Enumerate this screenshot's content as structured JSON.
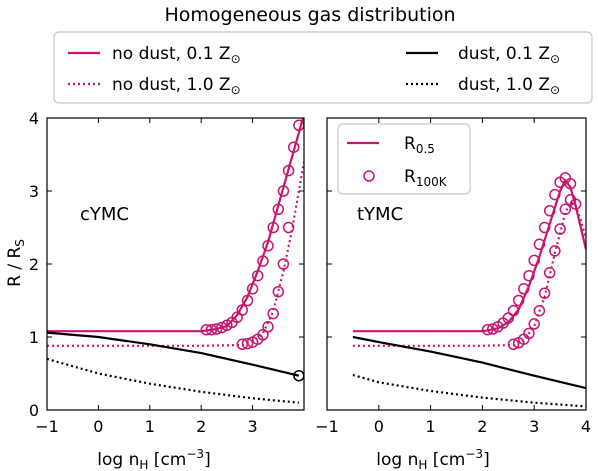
{
  "chart_data": {
    "type": "line",
    "title": "Homogeneous gas distribution",
    "colors": {
      "no_dust": "#c8156e",
      "dust": "#000000"
    },
    "legend_top": [
      {
        "id": "nd01",
        "text": "no dust, 0.1 Z",
        "sym": "⊙",
        "color": "#c8156e",
        "style": "solid"
      },
      {
        "id": "nd10",
        "text": "no dust, 1.0 Z",
        "sym": "⊙",
        "color": "#c8156e",
        "style": "dotted"
      },
      {
        "id": "d01",
        "text": "dust, 0.1 Z",
        "sym": "⊙",
        "color": "#000000",
        "style": "solid"
      },
      {
        "id": "d10",
        "text": "dust, 1.0 Z",
        "sym": "⊙",
        "color": "#000000",
        "style": "dotted"
      }
    ],
    "legend_inner": [
      {
        "main": "R",
        "sub": "0.5",
        "marker": "line"
      },
      {
        "main": "R",
        "sub": "100K",
        "marker": "circle"
      }
    ],
    "ylabel": {
      "main": "R / R",
      "sub": "S"
    },
    "xlabel": {
      "pre": "log n",
      "sub": "H",
      "post": " [cm",
      "sup": "−3",
      "end": "]"
    },
    "xlim": [
      -1,
      4
    ],
    "ylim": [
      0,
      4
    ],
    "panels": [
      {
        "name": "cYMC",
        "xticks": [
          "−1",
          "0",
          "1",
          "2",
          "3"
        ],
        "xtick_vals": [
          -1,
          0,
          1,
          2,
          3
        ],
        "yticks": [
          "0",
          "1",
          "2",
          "3",
          "4"
        ],
        "series": [
          {
            "name": "no dust, 0.1 Z",
            "color": "#c8156e",
            "style": "solid",
            "kind": "line",
            "x": [
              -1,
              0,
              1,
              2,
              2.1,
              2.3,
              2.5,
              2.7,
              2.9,
              3.1,
              3.3,
              3.5,
              3.7,
              3.9,
              4.0
            ],
            "y": [
              1.08,
              1.08,
              1.08,
              1.08,
              1.09,
              1.11,
              1.15,
              1.3,
              1.55,
              1.9,
              2.3,
              2.8,
              3.3,
              3.8,
              4.05
            ]
          },
          {
            "name": "no dust, 1.0 Z",
            "color": "#c8156e",
            "style": "dotted",
            "kind": "line",
            "x": [
              -1,
              0,
              1,
              2,
              2.8,
              3.0,
              3.2,
              3.4,
              3.6,
              3.75,
              3.9,
              4.0
            ],
            "y": [
              0.88,
              0.88,
              0.88,
              0.88,
              0.89,
              0.93,
              1.05,
              1.35,
              1.9,
              2.4,
              3.0,
              3.4
            ]
          },
          {
            "name": "dust, 0.1 Z",
            "color": "#000000",
            "style": "solid",
            "kind": "line",
            "x": [
              -1,
              0,
              1,
              2,
              3,
              3.9
            ],
            "y": [
              1.06,
              1.0,
              0.9,
              0.78,
              0.62,
              0.47
            ]
          },
          {
            "name": "dust, 1.0 Z",
            "color": "#000000",
            "style": "dotted",
            "kind": "line",
            "x": [
              -1,
              0,
              1,
              2,
              3,
              3.9
            ],
            "y": [
              0.7,
              0.5,
              0.36,
              0.25,
              0.16,
              0.1
            ]
          },
          {
            "name": "no dust, 0.1 Z R100K",
            "color": "#c8156e",
            "kind": "circles",
            "x": [
              2.1,
              2.2,
              2.3,
              2.4,
              2.5,
              2.6,
              2.7,
              2.8,
              2.9,
              3.0,
              3.1,
              3.2,
              3.3,
              3.4,
              3.5,
              3.6,
              3.7,
              3.8,
              3.9
            ],
            "y": [
              1.1,
              1.1,
              1.11,
              1.13,
              1.16,
              1.2,
              1.27,
              1.37,
              1.5,
              1.66,
              1.84,
              2.04,
              2.25,
              2.5,
              2.75,
              3.0,
              3.28,
              3.6,
              3.9
            ]
          },
          {
            "name": "no dust, 1.0 Z R100K",
            "color": "#c8156e",
            "kind": "circles",
            "x": [
              2.8,
              2.9,
              3.0,
              3.1,
              3.2,
              3.3,
              3.4,
              3.5,
              3.6,
              3.7
            ],
            "y": [
              0.9,
              0.91,
              0.93,
              0.97,
              1.03,
              1.14,
              1.32,
              1.62,
              2.0,
              2.5
            ]
          },
          {
            "name": "dust, 0.1 Z R100K",
            "color": "#000000",
            "kind": "circles",
            "x": [
              3.9
            ],
            "y": [
              0.47
            ]
          }
        ]
      },
      {
        "name": "tYMC",
        "xticks": [
          "−1",
          "0",
          "1",
          "2",
          "3",
          "4"
        ],
        "xtick_vals": [
          -1,
          0,
          1,
          2,
          3,
          4
        ],
        "yticks": [],
        "series": [
          {
            "name": "no dust, 0.1 Z",
            "color": "#c8156e",
            "style": "solid",
            "kind": "line",
            "x": [
              -0.5,
              0,
              1,
              2,
              2.1,
              2.3,
              2.5,
              2.7,
              2.9,
              3.1,
              3.3,
              3.5,
              3.6,
              3.7,
              3.8,
              3.9,
              4.0
            ],
            "y": [
              1.08,
              1.08,
              1.08,
              1.08,
              1.09,
              1.12,
              1.2,
              1.38,
              1.7,
              2.1,
              2.55,
              3.0,
              3.15,
              3.05,
              2.8,
              2.5,
              2.2
            ]
          },
          {
            "name": "no dust, 1.0 Z",
            "color": "#c8156e",
            "style": "dotted",
            "kind": "line",
            "x": [
              -0.5,
              0,
              1,
              2,
              2.6,
              2.8,
              3.0,
              3.2,
              3.4,
              3.6,
              3.7,
              3.8,
              3.9,
              4.0
            ],
            "y": [
              0.88,
              0.88,
              0.88,
              0.88,
              0.89,
              0.95,
              1.15,
              1.55,
              2.15,
              2.7,
              2.85,
              2.8,
              2.6,
              2.35
            ]
          },
          {
            "name": "dust, 0.1 Z",
            "color": "#000000",
            "style": "solid",
            "kind": "line",
            "x": [
              -0.5,
              0,
              1,
              2,
              3,
              4.0
            ],
            "y": [
              1.0,
              0.93,
              0.8,
              0.65,
              0.47,
              0.3
            ]
          },
          {
            "name": "dust, 1.0 Z",
            "color": "#000000",
            "style": "dotted",
            "kind": "line",
            "x": [
              -0.5,
              0,
              1,
              2,
              3,
              4.0
            ],
            "y": [
              0.48,
              0.38,
              0.26,
              0.17,
              0.1,
              0.05
            ]
          },
          {
            "name": "no dust, 0.1 Z R100K",
            "color": "#c8156e",
            "kind": "circles",
            "x": [
              2.1,
              2.2,
              2.3,
              2.4,
              2.5,
              2.6,
              2.7,
              2.8,
              2.9,
              3.0,
              3.1,
              3.2,
              3.3,
              3.4,
              3.5,
              3.6,
              3.7
            ],
            "y": [
              1.1,
              1.11,
              1.14,
              1.19,
              1.26,
              1.36,
              1.5,
              1.66,
              1.84,
              2.05,
              2.27,
              2.5,
              2.73,
              2.95,
              3.12,
              3.18,
              3.1
            ]
          },
          {
            "name": "no dust, 1.0 Z R100K",
            "color": "#c8156e",
            "kind": "circles",
            "x": [
              2.6,
              2.7,
              2.8,
              2.9,
              3.0,
              3.1,
              3.2,
              3.3,
              3.4,
              3.5,
              3.6,
              3.7,
              3.8
            ],
            "y": [
              0.9,
              0.92,
              0.97,
              1.05,
              1.18,
              1.36,
              1.6,
              1.88,
              2.18,
              2.48,
              2.75,
              2.88,
              2.82
            ]
          }
        ]
      }
    ]
  }
}
